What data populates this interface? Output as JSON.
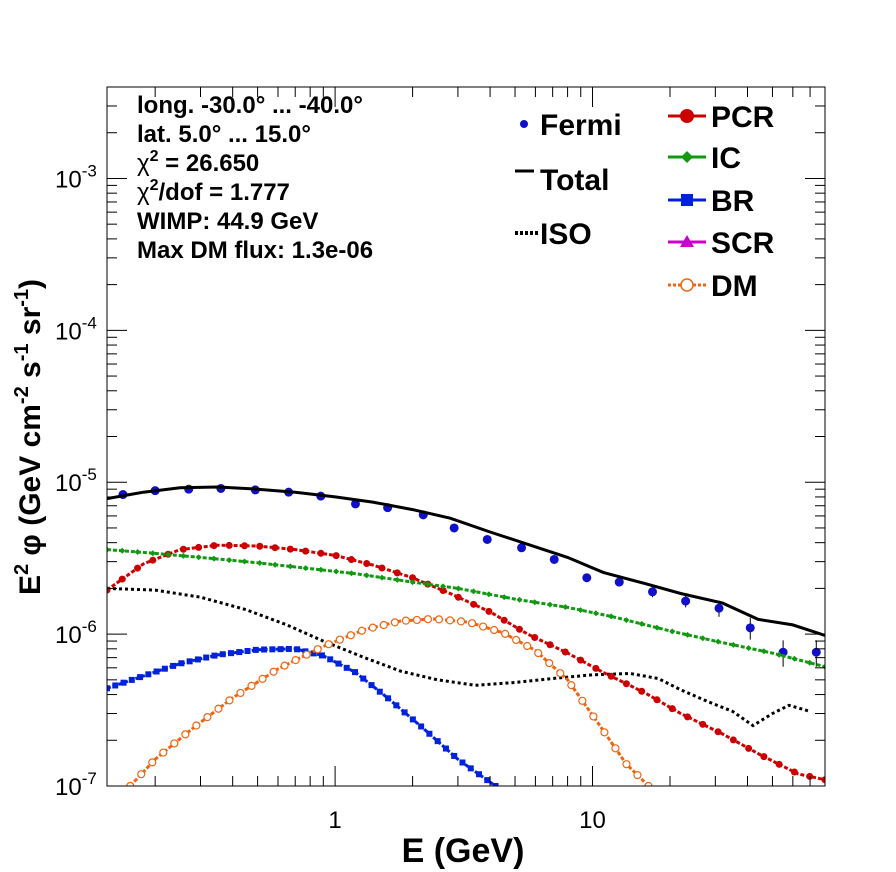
{
  "chart_data": {
    "type": "line",
    "x_scale": "log",
    "y_scale": "log",
    "xlim": [
      0.13,
      80
    ],
    "ylim": [
      1e-07,
      0.004
    ],
    "xlabel": "E (GeV)",
    "ylabel": {
      "main": "E",
      "sup1": "2",
      "rest": " φ (GeV cm",
      "sup2": "-2",
      "mid": " s",
      "sup3": "-1",
      "mid2": " sr",
      "sup4": "-1",
      "end": ")"
    },
    "x_ticks": [
      {
        "v": 1,
        "label": "1"
      },
      {
        "v": 10,
        "label": "10"
      }
    ],
    "y_ticks": [
      {
        "v": 1e-07,
        "base": "10",
        "exp": "-7"
      },
      {
        "v": 1e-06,
        "base": "10",
        "exp": "-6"
      },
      {
        "v": 1e-05,
        "base": "10",
        "exp": "-5"
      },
      {
        "v": 0.0001,
        "base": "10",
        "exp": "-4"
      },
      {
        "v": 0.001,
        "base": "10",
        "exp": "-3"
      }
    ],
    "info_lines": [
      {
        "text": "long. -30.0° ... -40.0°"
      },
      {
        "text": "lat. 5.0° ... 15.0°"
      },
      {
        "pre": "χ",
        "sup": "2",
        "text": " = 26.650"
      },
      {
        "pre": "χ",
        "sup": "2",
        "text": "/dof = 1.777"
      },
      {
        "text": "WIMP: 44.9 GeV"
      },
      {
        "text": "Max DM flux: 1.3e-06"
      }
    ],
    "legend_left": [
      {
        "key": "fermi",
        "label": "Fermi"
      },
      {
        "key": "total",
        "label": "Total"
      },
      {
        "key": "iso",
        "label": "ISO"
      }
    ],
    "legend_right": [
      {
        "key": "pcr",
        "label": "PCR"
      },
      {
        "key": "ic",
        "label": "IC"
      },
      {
        "key": "br",
        "label": "BR"
      },
      {
        "key": "scr",
        "label": "SCR"
      },
      {
        "key": "dm",
        "label": "DM"
      }
    ],
    "colors": {
      "fermi": "#1010c8",
      "total": "#000000",
      "iso": "#000000",
      "pcr": "#cc0000",
      "ic": "#119911",
      "br": "#0022dd",
      "scr": "#cc00cc",
      "dm": "#ee6611"
    },
    "series": [
      {
        "name": "Fermi",
        "key": "fermi",
        "style": "points",
        "x": [
          0.15,
          0.2,
          0.27,
          0.36,
          0.49,
          0.66,
          0.88,
          1.2,
          1.6,
          2.2,
          2.9,
          3.9,
          5.3,
          7.1,
          9.5,
          12.7,
          17.1,
          23,
          31,
          41,
          55,
          74
        ],
        "y": [
          8.3e-06,
          8.8e-06,
          9e-06,
          9.1e-06,
          8.9e-06,
          8.6e-06,
          8.1e-06,
          7.2e-06,
          6.8e-06,
          6.1e-06,
          5e-06,
          4.2e-06,
          3.7e-06,
          3.1e-06,
          2.35e-06,
          2.2e-06,
          1.9e-06,
          1.65e-06,
          1.48e-06,
          1.1e-06,
          7.6e-07,
          7.6e-07
        ],
        "err": [
          2e-07,
          2e-07,
          2e-07,
          2e-07,
          2e-07,
          2e-07,
          2e-07,
          1.5e-07,
          1.5e-07,
          1.2e-07,
          1e-07,
          1e-07,
          1e-07,
          1e-07,
          1e-07,
          1.2e-07,
          1.5e-07,
          1.5e-07,
          1.8e-07,
          1.8e-07,
          1.5e-07,
          1.5e-07
        ]
      },
      {
        "name": "Total",
        "key": "total",
        "style": "solid",
        "x": [
          0.13,
          0.18,
          0.25,
          0.35,
          0.5,
          0.7,
          1.0,
          1.4,
          2.0,
          2.8,
          4.0,
          5.6,
          8.0,
          11,
          16,
          22,
          32,
          44,
          60,
          80
        ],
        "y": [
          7.8e-06,
          8.6e-06,
          9.2e-06,
          9.3e-06,
          9e-06,
          8.6e-06,
          8e-06,
          7.4e-06,
          6.6e-06,
          5.8e-06,
          4.7e-06,
          3.9e-06,
          3.2e-06,
          2.55e-06,
          2.15e-06,
          1.85e-06,
          1.6e-06,
          1.25e-06,
          1.15e-06,
          9.8e-07
        ]
      },
      {
        "name": "ISO",
        "key": "iso",
        "style": "dotted",
        "x": [
          0.13,
          0.2,
          0.3,
          0.45,
          0.65,
          0.9,
          1.3,
          1.8,
          2.5,
          3.5,
          5,
          7,
          10,
          14,
          18,
          22,
          28,
          35,
          42,
          50,
          58,
          70
        ],
        "y": [
          2e-06,
          1.95e-06,
          1.75e-06,
          1.45e-06,
          1.15e-06,
          9e-07,
          7e-07,
          5.7e-07,
          5e-07,
          4.6e-07,
          4.8e-07,
          5.1e-07,
          5.4e-07,
          5.5e-07,
          5.1e-07,
          4.3e-07,
          3.6e-07,
          3.1e-07,
          2.5e-07,
          3e-07,
          3.4e-07,
          3.1e-07
        ]
      },
      {
        "name": "PCR",
        "key": "pcr",
        "style": "markers",
        "x": [
          0.13,
          0.18,
          0.25,
          0.35,
          0.5,
          0.7,
          1.0,
          1.4,
          2.0,
          2.8,
          4.0,
          5.6,
          8.0,
          11,
          16,
          22,
          32,
          45,
          63,
          80
        ],
        "y": [
          1.95e-06,
          2.9e-06,
          3.6e-06,
          3.85e-06,
          3.8e-06,
          3.6e-06,
          3.3e-06,
          2.85e-06,
          2.35e-06,
          1.85e-06,
          1.4e-06,
          1e-06,
          7.5e-07,
          5.6e-07,
          4.1e-07,
          3e-07,
          2.2e-07,
          1.6e-07,
          1.2e-07,
          1.1e-07
        ]
      },
      {
        "name": "IC",
        "key": "ic",
        "style": "markers",
        "x": [
          0.13,
          0.2,
          0.3,
          0.5,
          0.8,
          1.2,
          2.0,
          3.0,
          5.0,
          8.0,
          12,
          20,
          30,
          50,
          80
        ],
        "y": [
          3.6e-06,
          3.4e-06,
          3.2e-06,
          2.95e-06,
          2.7e-06,
          2.5e-06,
          2.2e-06,
          2e-06,
          1.7e-06,
          1.5e-06,
          1.3e-06,
          1.05e-06,
          9e-07,
          7.5e-07,
          6.1e-07
        ]
      },
      {
        "name": "BR",
        "key": "br",
        "style": "markers",
        "x": [
          0.13,
          0.18,
          0.25,
          0.35,
          0.5,
          0.7,
          0.9,
          1.2,
          1.6,
          2.2,
          3.0,
          4.2
        ],
        "y": [
          4.4e-07,
          5.3e-07,
          6.4e-07,
          7.3e-07,
          7.9e-07,
          8e-07,
          7.2e-07,
          5.6e-07,
          3.8e-07,
          2.4e-07,
          1.5e-07,
          1e-07
        ]
      },
      {
        "name": "DM",
        "key": "dm",
        "style": "markers",
        "x": [
          0.16,
          0.2,
          0.28,
          0.4,
          0.6,
          0.9,
          1.3,
          1.8,
          2.4,
          3.3,
          4.5,
          6.0,
          8.0,
          10.5,
          13.5,
          16.5
        ],
        "y": [
          1e-07,
          1.5e-07,
          2.4e-07,
          3.8e-07,
          5.9e-07,
          8.3e-07,
          1.07e-06,
          1.22e-06,
          1.26e-06,
          1.2e-06,
          1.02e-06,
          7.8e-07,
          5e-07,
          2.6e-07,
          1.4e-07,
          1e-07
        ]
      }
    ]
  }
}
